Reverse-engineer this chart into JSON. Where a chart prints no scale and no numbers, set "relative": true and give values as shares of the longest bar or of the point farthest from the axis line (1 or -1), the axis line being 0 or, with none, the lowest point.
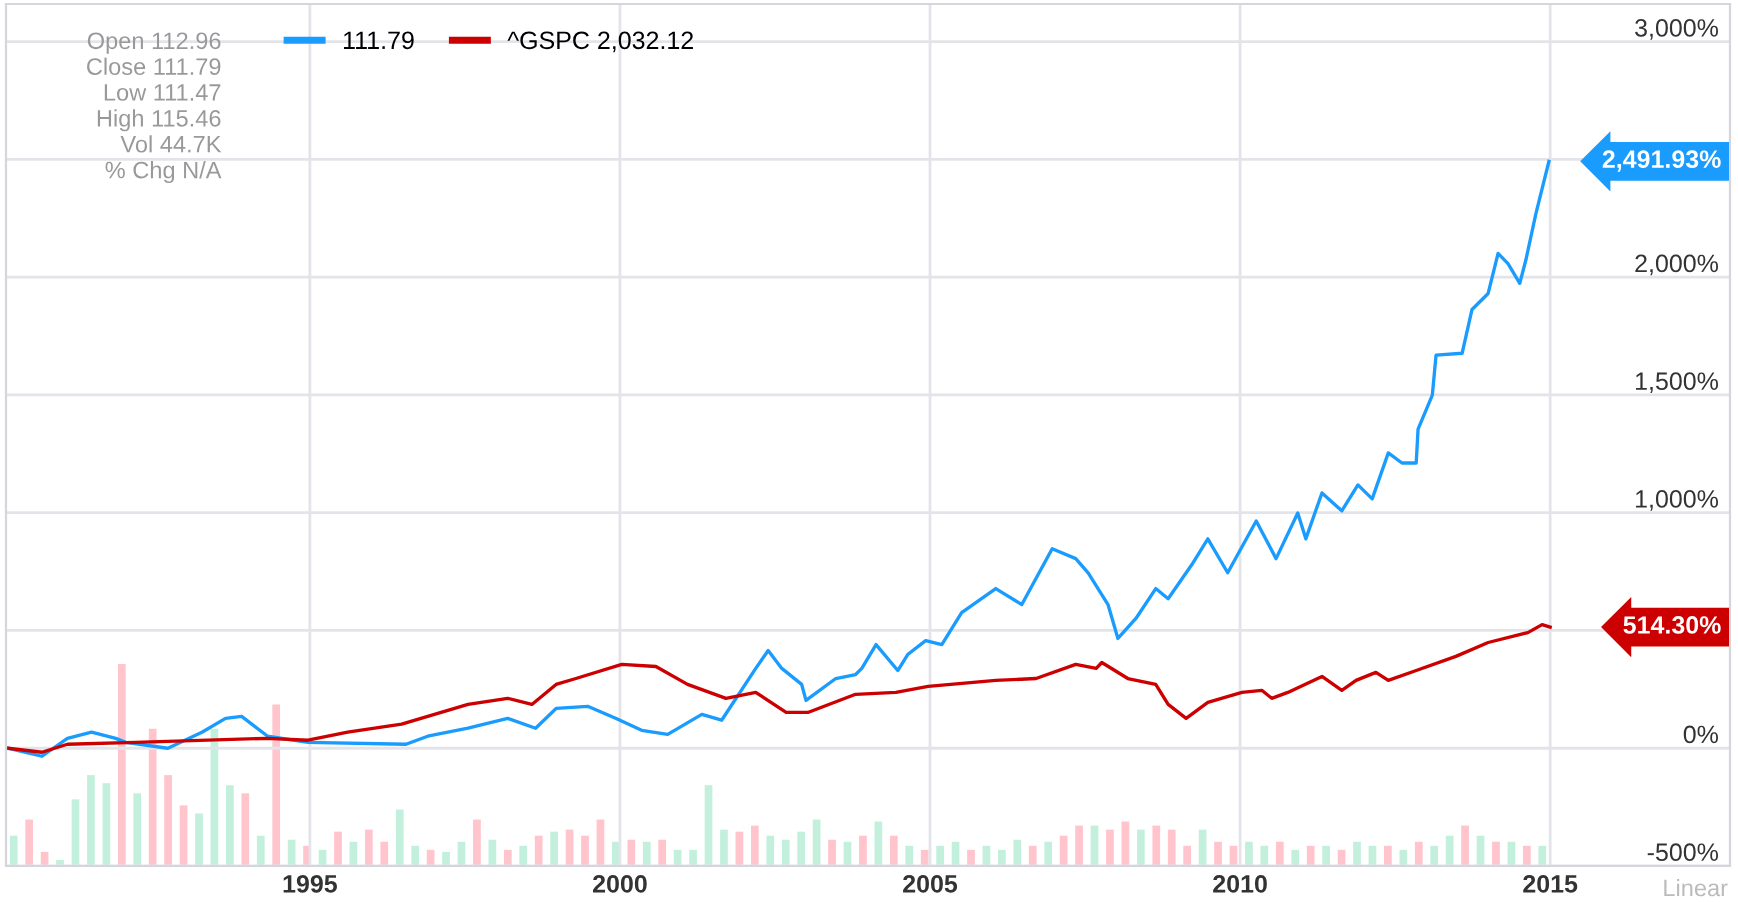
{
  "chart_data": [
    {
      "type": "line",
      "xlim": [
        1990.1,
        2017.9
      ],
      "ylim": [
        -500,
        3160
      ],
      "xticks": [
        1995,
        2000,
        2005,
        2010,
        2015
      ],
      "yticks": [
        {
          "value": -500,
          "label": "-500%"
        },
        {
          "value": 0,
          "label": "0%"
        },
        {
          "value": 500,
          "label": null
        },
        {
          "value": 1000,
          "label": "1,000%"
        },
        {
          "value": 1500,
          "label": "1,500%"
        },
        {
          "value": 2000,
          "label": "2,000%"
        },
        {
          "value": 2500,
          "label": null
        },
        {
          "value": 3000,
          "label": "3,000%"
        }
      ],
      "grid": true,
      "legend": "top left",
      "marker": "none",
      "line_style": "solid",
      "series": [
        {
          "name": "111.79",
          "color": "#1a9cff",
          "x": [
            1990.13,
            1990.68,
            1991.09,
            1991.48,
            1991.87,
            1992.03,
            1992.71,
            1993.26,
            1993.64,
            1993.9,
            1994.32,
            1994.97,
            1996.55,
            1996.9,
            1997.55,
            1998.19,
            1998.64,
            1998.97,
            1999.48,
            1999.93,
            2000.35,
            2000.77,
            2001.32,
            2001.64,
            2002.19,
            2002.39,
            2002.61,
            2002.93,
            2003.0,
            2003.48,
            2003.8,
            2003.9,
            2004.13,
            2004.48,
            2004.64,
            2004.93,
            2005.19,
            2005.51,
            2006.06,
            2006.48,
            2006.97,
            2007.35,
            2007.55,
            2007.87,
            2008.03,
            2008.32,
            2008.64,
            2008.84,
            2009.22,
            2009.48,
            2009.8,
            2010.26,
            2010.58,
            2010.93,
            2011.06,
            2011.32,
            2011.64,
            2011.9,
            2012.13,
            2012.39,
            2012.61,
            2012.84,
            2012.87,
            2013.1,
            2013.16,
            2013.58,
            2013.74,
            2014.0,
            2014.16,
            2014.32,
            2014.51,
            2014.61,
            2014.77,
            2014.98
          ],
          "values": [
            0,
            -34,
            42,
            68,
            42,
            25,
            0,
            68,
            127,
            135,
            51,
            25,
            17,
            51,
            85,
            127,
            85,
            169,
            178,
            127,
            76,
            59,
            144,
            119,
            339,
            415,
            339,
            271,
            203,
            296,
            313,
            339,
            440,
            330,
            398,
            457,
            440,
            576,
            678,
            610,
            847,
            805,
            745,
            610,
            466,
            551,
            678,
            635,
            779,
            889,
            745,
            965,
            805,
            999,
            889,
            1084,
            1008,
            1118,
            1059,
            1254,
            1211,
            1211,
            1355,
            1499,
            1669,
            1677,
            1863,
            1931,
            2101,
            2058,
            1974,
            2075,
            2270,
            2491.93
          ]
        },
        {
          "name": "^GSPC 2,032.12",
          "color": "#cc0000",
          "x": [
            1990.13,
            1990.68,
            1991.09,
            1992.19,
            1994.32,
            1994.97,
            1995.61,
            1996.48,
            1997.55,
            1998.19,
            1998.58,
            1998.97,
            1999.29,
            2000.03,
            2000.58,
            2001.09,
            2001.71,
            2002.19,
            2002.68,
            2003.03,
            2003.8,
            2004.45,
            2004.97,
            2006.06,
            2006.71,
            2007.35,
            2007.68,
            2007.77,
            2008.19,
            2008.64,
            2008.84,
            2009.13,
            2009.48,
            2010.03,
            2010.35,
            2010.51,
            2010.77,
            2011.32,
            2011.64,
            2011.87,
            2012.19,
            2012.39,
            2012.84,
            2013.48,
            2014.0,
            2014.64,
            2014.87,
            2015.0
          ],
          "values": [
            0,
            -17,
            17,
            25,
            42,
            34,
            68,
            102,
            186,
            212,
            186,
            271,
            296,
            356,
            347,
            271,
            212,
            237,
            152,
            152,
            229,
            237,
            263,
            288,
            296,
            356,
            339,
            364,
            296,
            271,
            186,
            127,
            195,
            237,
            246,
            212,
            237,
            305,
            246,
            288,
            322,
            288,
            330,
            390,
            449,
            491,
            525,
            514.3
          ]
        }
      ],
      "annotations": [
        {
          "text": "2,491.93%",
          "x": 2014.98,
          "y": 2491.93
        },
        {
          "text": "514.30%",
          "x": 2015.0,
          "y": 514.3
        },
        "Open 112.96",
        "Close 111.79",
        "Low 111.47",
        "High 115.46",
        "Vol 44.7K",
        "% Chg N/A",
        "Linear"
      ]
    },
    {
      "type": "bar",
      "relative": true,
      "categories": [
        null,
        null,
        null,
        null,
        null,
        null,
        null,
        null,
        null,
        null,
        null,
        null,
        null,
        null,
        null,
        null,
        null,
        null,
        null,
        null,
        null,
        null,
        null,
        null,
        null,
        null,
        null,
        null,
        null,
        null,
        null,
        null,
        null,
        null,
        null,
        null,
        null,
        null,
        null,
        null,
        null,
        null,
        null,
        null,
        null,
        null,
        null,
        null,
        null,
        null,
        null,
        null,
        null,
        null,
        null,
        null,
        null,
        null,
        null,
        null,
        null,
        null,
        null,
        null,
        null,
        null,
        null,
        null,
        null,
        null,
        null,
        null,
        null,
        null,
        null,
        null,
        null,
        null,
        null,
        null,
        null,
        null,
        null,
        null,
        null,
        null,
        null,
        null,
        null,
        null,
        null,
        null,
        null,
        null,
        null,
        null,
        null,
        null,
        null,
        null
      ],
      "values": [
        0.15,
        0.23,
        0.07,
        0.03,
        0.33,
        0.45,
        0.41,
        1.0,
        0.36,
        0.68,
        0.45,
        0.3,
        0.26,
        0.68,
        0.4,
        0.36,
        0.15,
        0.8,
        0.13,
        0.1,
        0.08,
        0.17,
        0.12,
        0.18,
        0.12,
        0.28,
        0.1,
        0.08,
        0.07,
        0.12,
        0.23,
        0.13,
        0.08,
        0.1,
        0.15,
        0.17,
        0.18,
        0.15,
        0.23,
        0.12,
        0.13,
        0.12,
        0.13,
        0.08,
        0.08,
        0.4,
        0.18,
        0.17,
        0.2,
        0.15,
        0.13,
        0.17,
        0.23,
        0.13,
        0.12,
        0.15,
        0.22,
        0.15,
        0.1,
        0.08,
        0.1,
        0.12,
        0.08,
        0.1,
        0.08,
        0.13,
        0.1,
        0.12,
        0.15,
        0.2,
        0.2,
        0.18,
        0.22,
        0.18,
        0.2,
        0.18,
        0.1,
        0.18,
        0.12,
        0.1,
        0.12,
        0.1,
        0.12,
        0.08,
        0.1,
        0.1,
        0.08,
        0.12,
        0.1,
        0.1,
        0.08,
        0.12,
        0.1,
        0.15,
        0.2,
        0.15,
        0.12,
        0.12,
        0.1,
        0.1
      ],
      "colors": [
        "#c3f0dc",
        "#ffc4cc",
        "#ffc4cc",
        "#c3f0dc",
        "#c3f0dc",
        "#c3f0dc",
        "#c3f0dc",
        "#ffc4cc",
        "#c3f0dc",
        "#ffc4cc",
        "#ffc4cc",
        "#ffc4cc",
        "#c3f0dc",
        "#c3f0dc",
        "#c3f0dc",
        "#ffc4cc",
        "#c3f0dc",
        "#ffc4cc",
        "#c3f0dc",
        "#ffc4cc",
        "#c3f0dc",
        "#ffc4cc",
        "#c3f0dc",
        "#ffc4cc",
        "#ffc4cc",
        "#c3f0dc",
        "#c3f0dc",
        "#ffc4cc",
        "#c3f0dc",
        "#c3f0dc",
        "#ffc4cc",
        "#c3f0dc",
        "#ffc4cc",
        "#c3f0dc",
        "#ffc4cc",
        "#c3f0dc",
        "#ffc4cc",
        "#ffc4cc",
        "#ffc4cc",
        "#c3f0dc",
        "#ffc4cc",
        "#c3f0dc",
        "#ffc4cc",
        "#c3f0dc",
        "#c3f0dc",
        "#c3f0dc",
        "#c3f0dc",
        "#ffc4cc",
        "#ffc4cc",
        "#c3f0dc",
        "#c3f0dc",
        "#c3f0dc",
        "#c3f0dc",
        "#ffc4cc",
        "#c3f0dc",
        "#ffc4cc",
        "#c3f0dc",
        "#ffc4cc",
        "#c3f0dc",
        "#ffc4cc",
        "#c3f0dc",
        "#c3f0dc",
        "#ffc4cc",
        "#c3f0dc",
        "#c3f0dc",
        "#c3f0dc",
        "#ffc4cc",
        "#c3f0dc",
        "#ffc4cc",
        "#ffc4cc",
        "#c3f0dc",
        "#ffc4cc",
        "#ffc4cc",
        "#c3f0dc",
        "#ffc4cc",
        "#ffc4cc",
        "#ffc4cc",
        "#c3f0dc",
        "#ffc4cc",
        "#ffc4cc",
        "#c3f0dc",
        "#c3f0dc",
        "#ffc4cc",
        "#c3f0dc",
        "#ffc4cc",
        "#c3f0dc",
        "#ffc4cc",
        "#c3f0dc",
        "#c3f0dc",
        "#ffc4cc",
        "#c3f0dc",
        "#ffc4cc",
        "#c3f0dc",
        "#c3f0dc",
        "#ffc4cc",
        "#c3f0dc",
        "#ffc4cc",
        "#c3f0dc",
        "#ffc4cc",
        "#c3f0dc"
      ]
    }
  ]
}
